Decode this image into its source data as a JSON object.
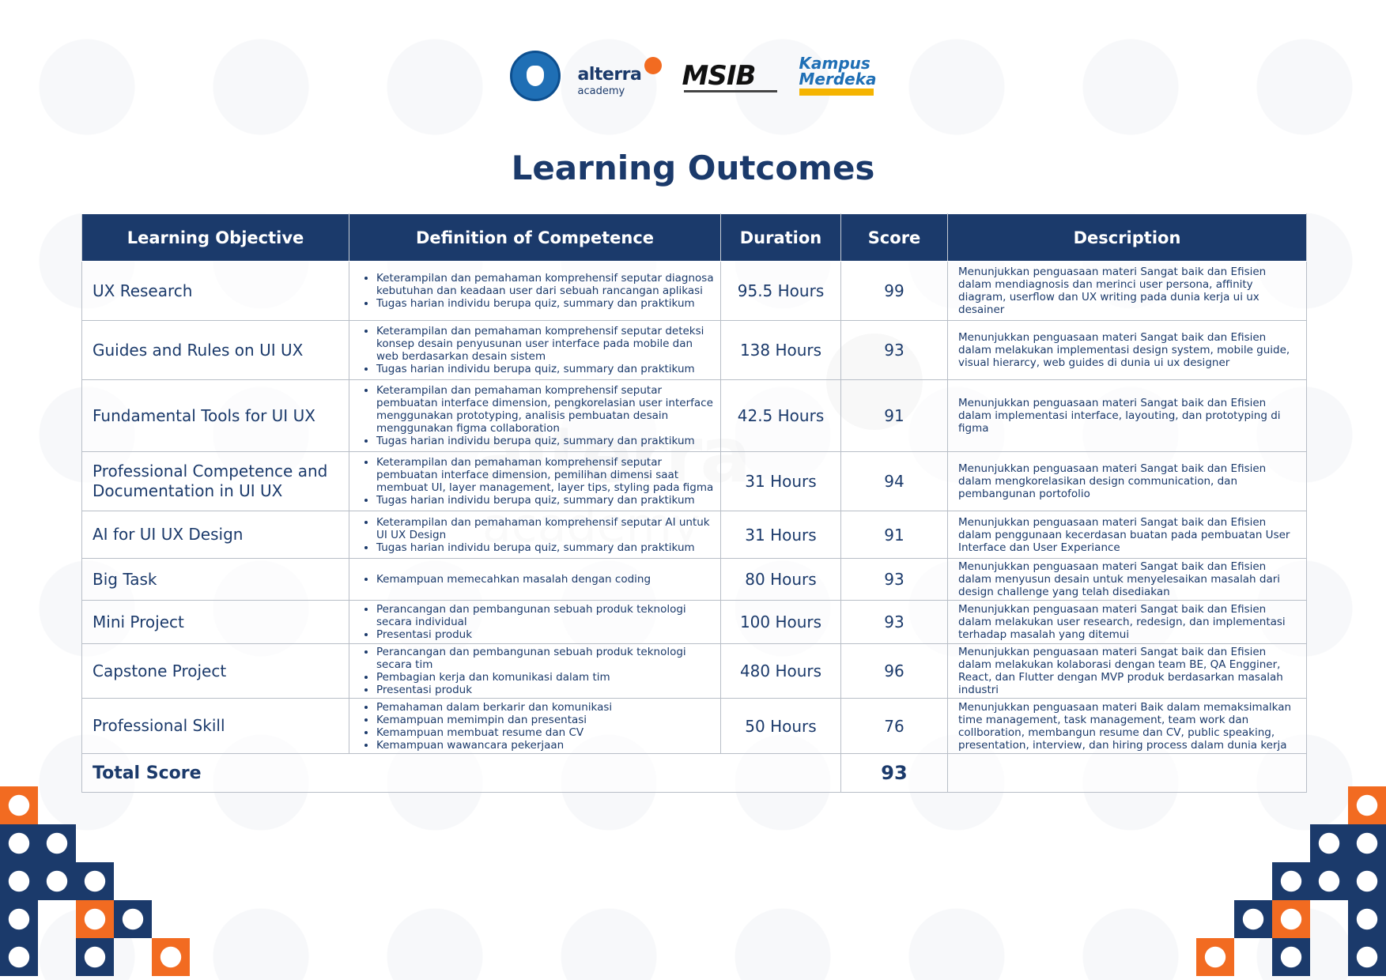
{
  "logos": {
    "alterra_word": "alterra",
    "alterra_sub": "academy",
    "msib_word": "MSIB",
    "kampus_line1": "Kampus",
    "kampus_line2": "Merdeka"
  },
  "title": "Learning Outcomes",
  "colors": {
    "navy": "#1b3a6b",
    "orange": "#f26b21",
    "border": "#b8bec7"
  },
  "table": {
    "headers": [
      "Learning Objective",
      "Definition of Competence",
      "Duration",
      "Score",
      "Description"
    ],
    "rows": [
      {
        "objective": "UX Research",
        "competence": [
          "Keterampilan dan pemahaman komprehensif seputar diagnosa kebutuhan dan keadaan user dari sebuah rancangan aplikasi",
          "Tugas harian individu berupa quiz, summary dan praktikum"
        ],
        "duration": "95.5 Hours",
        "score": "99",
        "description": "Menunjukkan penguasaan materi Sangat baik dan Efisien dalam mendiagnosis dan merinci user persona, affinity diagram, userflow dan UX writing pada dunia kerja ui ux desainer"
      },
      {
        "objective": "Guides and Rules on UI UX",
        "competence": [
          "Keterampilan dan pemahaman komprehensif seputar deteksi konsep desain penyusunan user interface pada mobile dan web berdasarkan desain sistem",
          "Tugas harian individu berupa quiz, summary dan praktikum"
        ],
        "duration": "138 Hours",
        "score": "93",
        "description": "Menunjukkan penguasaan materi Sangat baik dan Efisien dalam melakukan implementasi design system, mobile guide, visual hierarcy, web guides di dunia ui ux designer"
      },
      {
        "objective": "Fundamental Tools for UI UX",
        "competence": [
          "Keterampilan dan pemahaman komprehensif seputar pembuatan interface dimension, pengkorelasian user interface menggunakan prototyping, analisis pembuatan desain menggunakan figma collaboration",
          "Tugas harian individu berupa quiz, summary dan praktikum"
        ],
        "duration": "42.5 Hours",
        "score": "91",
        "description": "Menunjukkan penguasaan materi Sangat baik dan Efisien dalam implementasi interface, layouting, dan prototyping di figma"
      },
      {
        "objective": "Professional Competence and Documentation in UI UX",
        "competence": [
          "Keterampilan dan pemahaman komprehensif seputar pembuatan interface dimension, pemilihan dimensi saat membuat UI, layer management, layer tips, styling pada figma",
          "Tugas harian individu berupa quiz, summary dan praktikum"
        ],
        "duration": "31 Hours",
        "score": "94",
        "description": "Menunjukkan penguasaan materi Sangat baik dan Efisien dalam mengkorelasikan design communication, dan pembangunan portofolio"
      },
      {
        "objective": "AI for UI UX Design",
        "competence": [
          "Keterampilan dan pemahaman komprehensif seputar AI untuk UI UX Design",
          "Tugas harian individu berupa quiz, summary dan praktikum"
        ],
        "duration": "31 Hours",
        "score": "91",
        "description": "Menunjukkan penguasaan materi Sangat baik dan Efisien dalam penggunaan kecerdasan buatan pada pembuatan User Interface dan User Experiance"
      },
      {
        "objective": "Big Task",
        "competence": [
          "Kemampuan memecahkan masalah dengan coding"
        ],
        "duration": "80 Hours",
        "score": "93",
        "description": "Menunjukkan penguasaan materi Sangat baik dan Efisien dalam menyusun desain untuk menyelesaikan masalah dari design challenge yang telah disediakan"
      },
      {
        "objective": "Mini Project",
        "competence": [
          "Perancangan dan pembangunan sebuah produk teknologi secara individual",
          "Presentasi produk"
        ],
        "duration": "100 Hours",
        "score": "93",
        "description": "Menunjukkan penguasaan materi Sangat baik dan Efisien dalam melakukan user research, redesign, dan implementasi terhadap masalah   yang ditemui"
      },
      {
        "objective": "Capstone Project",
        "competence": [
          "Perancangan dan pembangunan sebuah produk teknologi secara tim",
          "Pembagian kerja dan komunikasi dalam tim",
          "Presentasi produk"
        ],
        "duration": "480 Hours",
        "score": "96",
        "description": "Menunjukkan penguasaan materi Sangat baik dan Efisien dalam melakukan kolaborasi dengan team BE, QA Engginer, React, dan Flutter dengan MVP produk berdasarkan masalah industri"
      },
      {
        "objective": "Professional Skill",
        "competence": [
          "Pemahaman dalam berkarir dan komunikasi",
          "Kemampuan memimpin dan presentasi",
          "Kemampuan membuat resume dan CV",
          "Kemampuan wawancara pekerjaan"
        ],
        "duration": "50 Hours",
        "score": "76",
        "description": "Menunjukkan penguasaan materi Baik dalam memaksimalkan time management, task management, team work dan collboration, membangun resume dan CV, public speaking, presentation, interview, dan hiring process dalam dunia kerja"
      }
    ],
    "total_label": "Total Score",
    "total_score": "93"
  }
}
